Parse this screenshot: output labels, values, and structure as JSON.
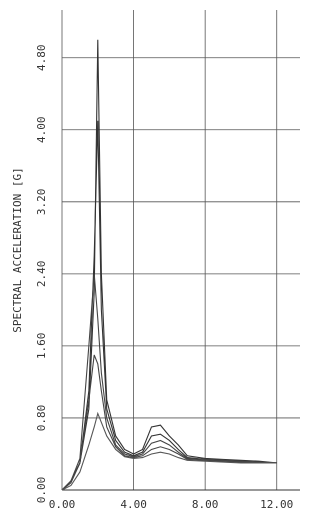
{
  "chart_data": {
    "type": "line",
    "y_label": "SPECTRAL ACCELERATION [G]",
    "x": [
      0,
      0.5,
      1,
      1.5,
      1.8,
      2.0,
      2.2,
      2.5,
      3,
      3.5,
      4,
      4.5,
      5,
      5.5,
      6,
      6.5,
      7,
      8,
      9,
      10,
      11,
      12
    ],
    "series": [
      {
        "color": "#333333",
        "values": [
          0,
          0.1,
          0.3,
          0.9,
          2.2,
          5.0,
          2.4,
          1.0,
          0.6,
          0.45,
          0.4,
          0.45,
          0.7,
          0.72,
          0.6,
          0.5,
          0.38,
          0.35,
          0.34,
          0.33,
          0.32,
          0.3
        ]
      },
      {
        "color": "#333333",
        "values": [
          0,
          0.1,
          0.3,
          1.1,
          2.6,
          4.1,
          2.0,
          0.9,
          0.55,
          0.42,
          0.38,
          0.42,
          0.6,
          0.62,
          0.55,
          0.45,
          0.36,
          0.34,
          0.33,
          0.32,
          0.31,
          0.3
        ]
      },
      {
        "color": "#444444",
        "values": [
          0,
          0.1,
          0.35,
          1.6,
          2.4,
          1.9,
          1.3,
          0.8,
          0.5,
          0.4,
          0.37,
          0.4,
          0.52,
          0.55,
          0.5,
          0.42,
          0.35,
          0.34,
          0.33,
          0.32,
          0.31,
          0.3
        ]
      },
      {
        "color": "#444444",
        "values": [
          0,
          0.08,
          0.3,
          1.0,
          1.5,
          1.4,
          1.1,
          0.7,
          0.48,
          0.38,
          0.36,
          0.38,
          0.45,
          0.48,
          0.45,
          0.4,
          0.34,
          0.33,
          0.32,
          0.31,
          0.3,
          0.3
        ]
      },
      {
        "color": "#555555",
        "values": [
          0,
          0.05,
          0.2,
          0.5,
          0.7,
          0.85,
          0.75,
          0.6,
          0.45,
          0.37,
          0.35,
          0.36,
          0.4,
          0.42,
          0.4,
          0.36,
          0.33,
          0.32,
          0.31,
          0.3,
          0.3,
          0.3
        ]
      }
    ],
    "xlim": [
      0,
      13.3
    ],
    "ylim": [
      0,
      5.33
    ],
    "xticks": [
      {
        "value": 0,
        "label": "0.00"
      },
      {
        "value": 4,
        "label": "4.00"
      },
      {
        "value": 8,
        "label": "8.00"
      },
      {
        "value": 12,
        "label": "12.00"
      }
    ],
    "yticks": [
      {
        "value": 0,
        "label": "0.00"
      },
      {
        "value": 0.8,
        "label": "0.80"
      },
      {
        "value": 1.6,
        "label": "1.60"
      },
      {
        "value": 2.4,
        "label": "2.40"
      },
      {
        "value": 3.2,
        "label": "3.20"
      },
      {
        "value": 4.0,
        "label": "4.00"
      },
      {
        "value": 4.8,
        "label": "4.80"
      }
    ],
    "grid": true
  }
}
